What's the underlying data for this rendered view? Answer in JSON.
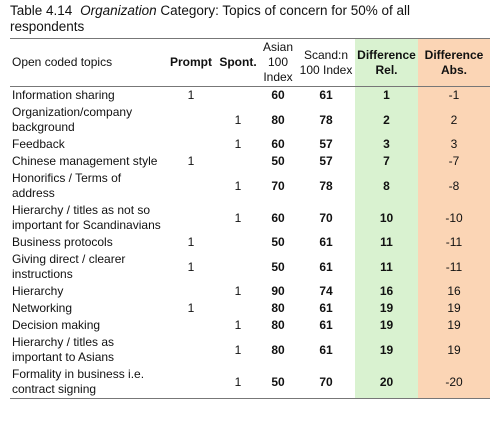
{
  "caption": {
    "label": "Table 4.14",
    "emphasis": "Organization",
    "text": "Category: Topics of concern for 50% of all respondents"
  },
  "table": {
    "headers": [
      "Open coded topics",
      "Prompt",
      "Spont.",
      "Asian 100 Index",
      "Scand:n 100 Index",
      "Difference Rel.",
      "Difference Abs."
    ],
    "rows": [
      [
        "Information sharing",
        1,
        null,
        60,
        61,
        1,
        -1
      ],
      [
        "Organization/company background",
        null,
        1,
        80,
        78,
        2,
        2
      ],
      [
        "Feedback",
        null,
        1,
        60,
        57,
        3,
        3
      ],
      [
        "Chinese management style",
        1,
        null,
        50,
        57,
        7,
        -7
      ],
      [
        "Honorifics / Terms of address",
        null,
        1,
        70,
        78,
        8,
        -8
      ],
      [
        "Hierarchy / titles as not so important for Scandinavians",
        null,
        1,
        60,
        70,
        10,
        -10
      ],
      [
        "Business protocols",
        1,
        null,
        50,
        61,
        11,
        -11
      ],
      [
        "Giving direct / clearer instructions",
        1,
        null,
        50,
        61,
        11,
        -11
      ],
      [
        "Hierarchy",
        null,
        1,
        90,
        74,
        16,
        16
      ],
      [
        "Networking",
        1,
        null,
        80,
        61,
        19,
        19
      ],
      [
        "Decision making",
        null,
        1,
        80,
        61,
        19,
        19
      ],
      [
        "Hierarchy / titles as important to Asians",
        null,
        1,
        80,
        61,
        19,
        19
      ],
      [
        "Formality in business i.e. contract signing",
        null,
        1,
        50,
        70,
        20,
        -20
      ]
    ]
  }
}
